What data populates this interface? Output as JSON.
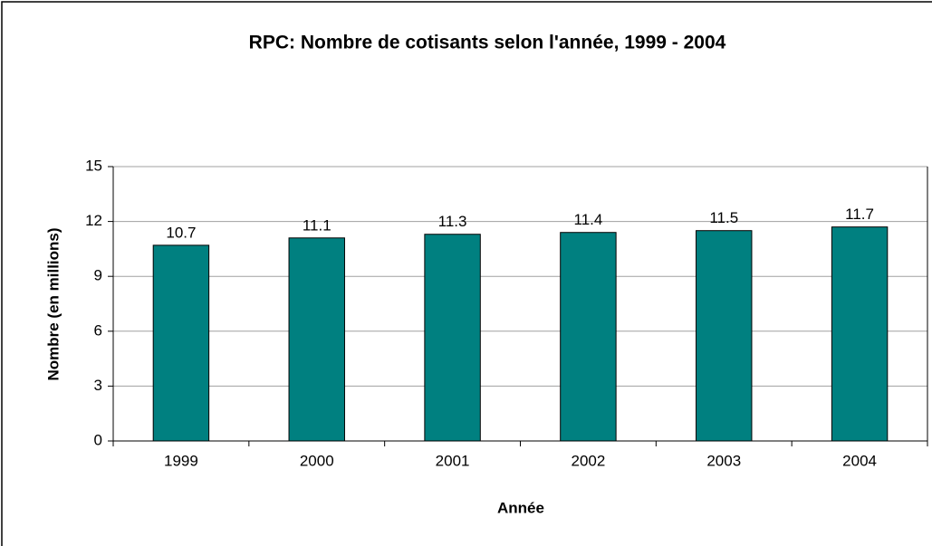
{
  "chart_data": {
    "type": "bar",
    "title": "RPC: Nombre de cotisants selon l'année, 1999 - 2004",
    "x_label": "Année",
    "y_label": "Nombre (en millions)",
    "categories": [
      "1999",
      "2000",
      "2001",
      "2002",
      "2003",
      "2004"
    ],
    "values": [
      10.7,
      11.1,
      11.3,
      11.4,
      11.5,
      11.7
    ],
    "color": "#008080",
    "ylim": [
      0,
      15
    ],
    "yticks": [
      0,
      3,
      6,
      9,
      12,
      15
    ],
    "grid": true
  }
}
